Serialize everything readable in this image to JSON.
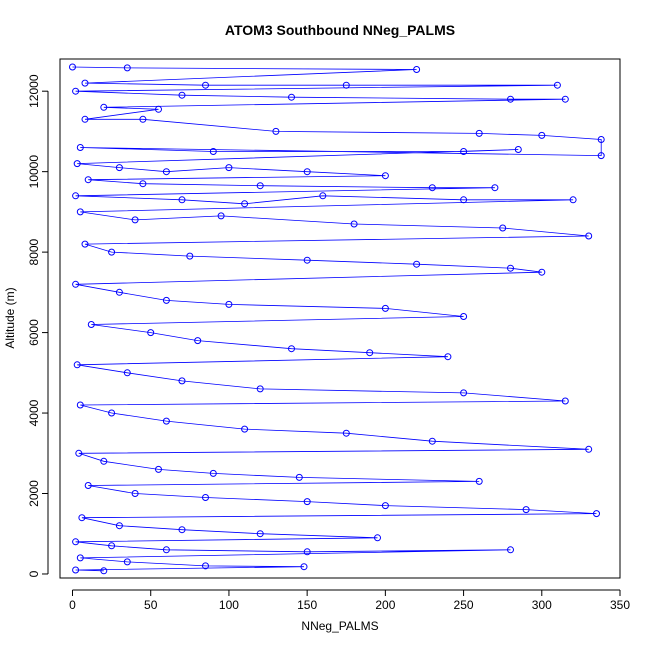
{
  "chart_data": {
    "type": "scatter",
    "title": "ATOM3 Southbound NNeg_PALMS",
    "xlabel": "NNeg_PALMS",
    "ylabel": "Altitude (m)",
    "xlim": [
      -8,
      350
    ],
    "ylim": [
      -100,
      12800
    ],
    "x_ticks": [
      0,
      50,
      100,
      150,
      200,
      250,
      300,
      350
    ],
    "y_ticks": [
      0,
      2000,
      4000,
      6000,
      8000,
      10000,
      12000
    ],
    "colors": {
      "series": "#0000ff",
      "axis": "#000000"
    },
    "marker": "open-circle",
    "lines_connecting_points": true,
    "series": [
      {
        "name": "profiles",
        "points": [
          [
            0,
            12600
          ],
          [
            35,
            12580
          ],
          [
            220,
            12540
          ],
          [
            8,
            12200
          ],
          [
            85,
            12150
          ],
          [
            175,
            12150
          ],
          [
            310,
            12150
          ],
          [
            2,
            12000
          ],
          [
            70,
            11900
          ],
          [
            140,
            11850
          ],
          [
            280,
            11800
          ],
          [
            315,
            11800
          ],
          [
            20,
            11600
          ],
          [
            55,
            11550
          ],
          [
            8,
            11300
          ],
          [
            45,
            11300
          ],
          [
            130,
            11000
          ],
          [
            260,
            10950
          ],
          [
            300,
            10900
          ],
          [
            338,
            10800
          ],
          [
            338,
            10400
          ],
          [
            5,
            10600
          ],
          [
            90,
            10500
          ],
          [
            250,
            10500
          ],
          [
            285,
            10550
          ],
          [
            3,
            10200
          ],
          [
            30,
            10100
          ],
          [
            60,
            10000
          ],
          [
            100,
            10100
          ],
          [
            150,
            10000
          ],
          [
            200,
            9900
          ],
          [
            10,
            9800
          ],
          [
            45,
            9700
          ],
          [
            120,
            9650
          ],
          [
            230,
            9600
          ],
          [
            270,
            9600
          ],
          [
            2,
            9400
          ],
          [
            70,
            9300
          ],
          [
            110,
            9200
          ],
          [
            160,
            9400
          ],
          [
            250,
            9300
          ],
          [
            320,
            9300
          ],
          [
            5,
            9000
          ],
          [
            40,
            8800
          ],
          [
            95,
            8900
          ],
          [
            180,
            8700
          ],
          [
            275,
            8600
          ],
          [
            330,
            8400
          ],
          [
            8,
            8200
          ],
          [
            25,
            8000
          ],
          [
            75,
            7900
          ],
          [
            150,
            7800
          ],
          [
            220,
            7700
          ],
          [
            280,
            7600
          ],
          [
            300,
            7500
          ],
          [
            2,
            7200
          ],
          [
            30,
            7000
          ],
          [
            60,
            6800
          ],
          [
            100,
            6700
          ],
          [
            200,
            6600
          ],
          [
            250,
            6400
          ],
          [
            12,
            6200
          ],
          [
            50,
            6000
          ],
          [
            80,
            5800
          ],
          [
            140,
            5600
          ],
          [
            190,
            5500
          ],
          [
            240,
            5400
          ],
          [
            3,
            5200
          ],
          [
            35,
            5000
          ],
          [
            70,
            4800
          ],
          [
            120,
            4600
          ],
          [
            250,
            4500
          ],
          [
            315,
            4300
          ],
          [
            5,
            4200
          ],
          [
            25,
            4000
          ],
          [
            60,
            3800
          ],
          [
            110,
            3600
          ],
          [
            175,
            3500
          ],
          [
            230,
            3300
          ],
          [
            330,
            3100
          ],
          [
            4,
            3000
          ],
          [
            20,
            2800
          ],
          [
            55,
            2600
          ],
          [
            90,
            2500
          ],
          [
            145,
            2400
          ],
          [
            260,
            2300
          ],
          [
            10,
            2200
          ],
          [
            40,
            2000
          ],
          [
            85,
            1900
          ],
          [
            150,
            1800
          ],
          [
            200,
            1700
          ],
          [
            290,
            1600
          ],
          [
            335,
            1500
          ],
          [
            6,
            1400
          ],
          [
            30,
            1200
          ],
          [
            70,
            1100
          ],
          [
            120,
            1000
          ],
          [
            195,
            900
          ],
          [
            2,
            800
          ],
          [
            25,
            700
          ],
          [
            60,
            600
          ],
          [
            150,
            550
          ],
          [
            280,
            600
          ],
          [
            5,
            400
          ],
          [
            35,
            300
          ],
          [
            85,
            200
          ],
          [
            148,
            180
          ],
          [
            2,
            100
          ],
          [
            20,
            80
          ]
        ]
      }
    ]
  }
}
